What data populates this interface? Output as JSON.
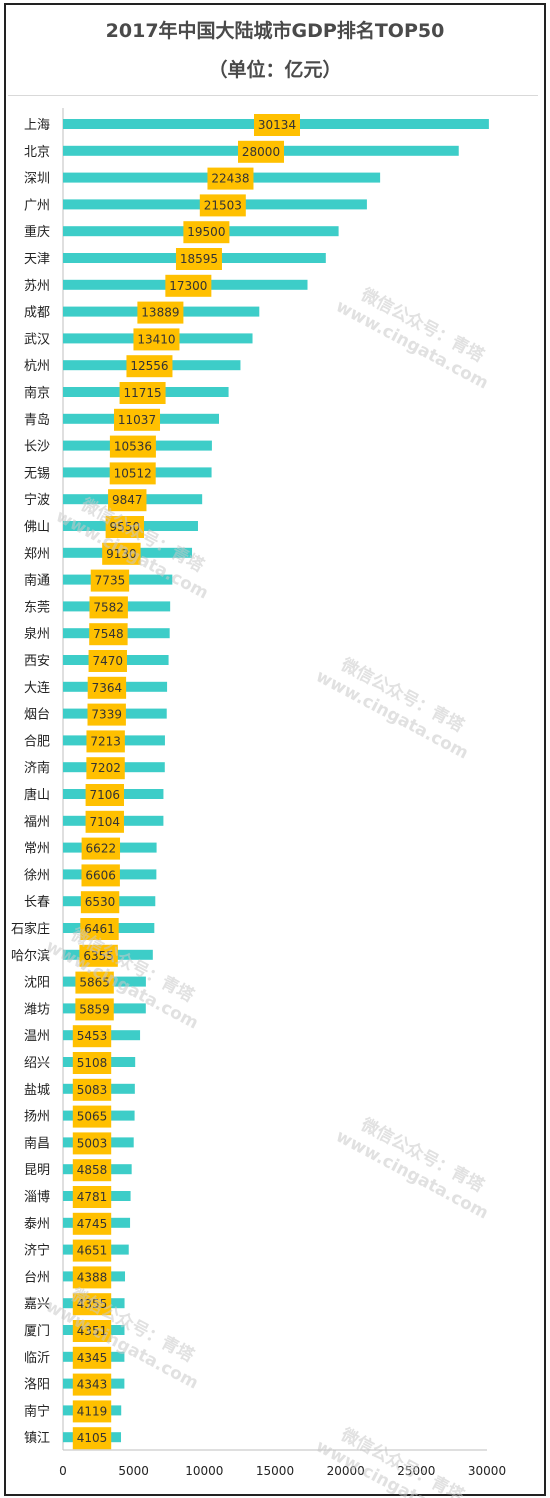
{
  "title": "2017年中国大陆城市GDP排名TOP50",
  "subtitle": "（单位：亿元）",
  "watermark": [
    "微信公众号：青塔",
    "www.cingata.com"
  ],
  "colors": {
    "bar": "#3dcdc8",
    "label_bg": "#ffc000",
    "axis": "#bfbfbf",
    "grid": "#e6e6e6"
  },
  "chart_data": {
    "type": "bar",
    "orientation": "horizontal",
    "title": "2017年中国大陆城市GDP排名TOP50",
    "subtitle": "（单位：亿元）",
    "xlabel": "",
    "ylabel": "",
    "xlim": [
      0,
      30000
    ],
    "xticks": [
      0,
      5000,
      10000,
      15000,
      20000,
      25000,
      30000
    ],
    "grid": false,
    "legend": "none",
    "categories": [
      "上海",
      "北京",
      "深圳",
      "广州",
      "重庆",
      "天津",
      "苏州",
      "成都",
      "武汉",
      "杭州",
      "南京",
      "青岛",
      "长沙",
      "无锡",
      "宁波",
      "佛山",
      "郑州",
      "南通",
      "东莞",
      "泉州",
      "西安",
      "大连",
      "烟台",
      "合肥",
      "济南",
      "唐山",
      "福州",
      "常州",
      "徐州",
      "长春",
      "石家庄",
      "哈尔滨",
      "沈阳",
      "潍坊",
      "温州",
      "绍兴",
      "盐城",
      "扬州",
      "南昌",
      "昆明",
      "淄博",
      "泰州",
      "济宁",
      "台州",
      "嘉兴",
      "厦门",
      "临沂",
      "洛阳",
      "南宁",
      "镇江"
    ],
    "values": [
      30134,
      28000,
      22438,
      21503,
      19500,
      18595,
      17300,
      13889,
      13410,
      12556,
      11715,
      11037,
      10536,
      10512,
      9847,
      9550,
      9130,
      7735,
      7582,
      7548,
      7470,
      7364,
      7339,
      7213,
      7202,
      7106,
      7104,
      6622,
      6606,
      6530,
      6461,
      6355,
      5865,
      5859,
      5453,
      5108,
      5083,
      5065,
      5003,
      4858,
      4781,
      4745,
      4651,
      4388,
      4355,
      4351,
      4345,
      4343,
      4119,
      4105
    ]
  }
}
